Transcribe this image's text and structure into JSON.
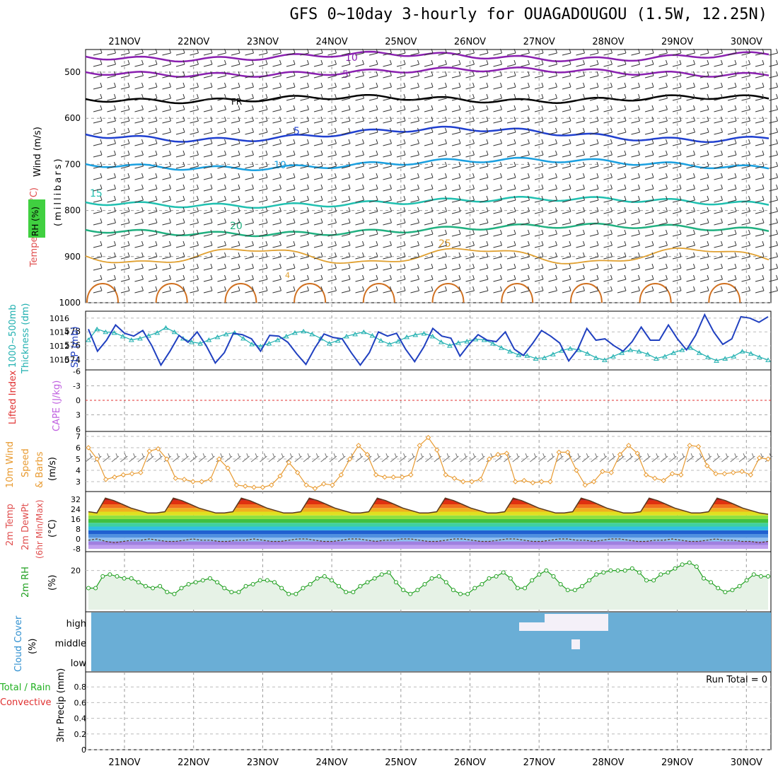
{
  "title": "GFS 0~10day 3-hourly for OUAGADOUGOU (1.5W, 12.25N)",
  "days": [
    "21NOV",
    "22NOV",
    "23NOV",
    "24NOV",
    "25NOV",
    "26NOV",
    "27NOV",
    "28NOV",
    "29NOV",
    "30NOV"
  ],
  "colors": {
    "wind_label": "#000000",
    "temp_label": "#e05050",
    "rh_label": "#20c020",
    "thickness": "#20b0b0",
    "slp": "#2040c0",
    "cape": "#c060e0",
    "lifted": "#e03030",
    "wind10": "#e89a30",
    "barb": "#707070",
    "rh2m": "#20a020",
    "cloud_bg": "#6aaed6",
    "cloud_gap": "#f4f0f8",
    "precip_total": "#20b020",
    "precip_conv": "#e03030"
  },
  "panels": {
    "upper": {
      "labels": [
        "Wind (m/s)",
        "Temperature (°C)",
        "RH (%)",
        "(millibars)"
      ],
      "yticks": [
        "500",
        "600",
        "700",
        "800",
        "900",
        "1000"
      ],
      "contour_labels": [
        "10",
        "5",
        "FR",
        "5",
        "10",
        "15",
        "20",
        "25",
        "4"
      ]
    },
    "thickness_slp": {
      "labels": [
        "1000~500mb",
        "Thickness (dm)",
        "SLP (mb)"
      ],
      "left_ticks": [
        "578",
        "576",
        "574"
      ],
      "right_ticks": [
        "1016",
        "1014",
        "1012",
        "1010"
      ]
    },
    "lifted_cape": {
      "labels": [
        "Lifted Index",
        "CAPE (J/kg)"
      ],
      "ticks": [
        "-6",
        "-3",
        "0",
        "3",
        "6"
      ]
    },
    "wind10": {
      "labels": [
        "10m Wind",
        "Speed",
        "& Barbs",
        "(m/s)"
      ],
      "ticks": [
        "7",
        "6",
        "5",
        "4",
        "3"
      ]
    },
    "temp2m": {
      "labels": [
        "2m Temp",
        "2m DewPt",
        "(6hr Min/Max)",
        "(°C)"
      ],
      "ticks": [
        "32",
        "24",
        "16",
        "8",
        "0",
        "-8"
      ]
    },
    "rh2m": {
      "labels": [
        "2m RH",
        "(%)"
      ],
      "ticks": [
        "20"
      ]
    },
    "cloud": {
      "labels": [
        "Cloud Cover",
        "(%)"
      ],
      "ticks": [
        "high",
        "middle",
        "low"
      ]
    },
    "precip": {
      "labels": [
        "Total / Rain",
        "Convective",
        "3hr Precip (mm)"
      ],
      "ticks": [
        "0.8",
        "0.6",
        "0.4",
        "0.2",
        "0"
      ],
      "run_total": "Run Total = 0"
    }
  },
  "chart_data": [
    {
      "type": "line",
      "name": "1000~500mb Thickness (dm)",
      "unit": "dm",
      "x": "3-hourly 20NOV12Z to 30NOV06Z",
      "ylim": [
        573,
        580
      ],
      "values": [
        576.8,
        578.3,
        577.9,
        577.8,
        577.3,
        576.8,
        577.0,
        577.4,
        577.8,
        578.5,
        577.9,
        577.0,
        576.5,
        576.3,
        576.8,
        577.2,
        577.6,
        577.8,
        577.0,
        576.2,
        575.9,
        576.3,
        576.8,
        577.3,
        577.8,
        578.0,
        577.6,
        577.0,
        576.3,
        576.7,
        577.3,
        577.6,
        577.9,
        577.4,
        576.7,
        576.2,
        576.6,
        577.2,
        577.5,
        577.7,
        577.3,
        576.5,
        576.0,
        576.4,
        576.6,
        576.9,
        576.8,
        576.3,
        575.7,
        575.2,
        574.7,
        574.6,
        574.2,
        574.3,
        574.8,
        575.3,
        575.6,
        575.4,
        574.9,
        574.3,
        574.0,
        574.5,
        575.0,
        575.4,
        575.2,
        574.8,
        574.2,
        574.5,
        575.0,
        575.4,
        575.7,
        575.0,
        574.4,
        573.9,
        574.2,
        574.5,
        575.2,
        574.9,
        574.4,
        574.0
      ]
    },
    {
      "type": "line",
      "name": "SLP (mb)",
      "unit": "mb",
      "ylim": [
        1008.5,
        1017
      ],
      "values": [
        1014.4,
        1011.2,
        1012.8,
        1015.0,
        1013.8,
        1013.4,
        1014.2,
        1012.0,
        1009.2,
        1011.2,
        1013.5,
        1012.5,
        1014.0,
        1012.0,
        1009.5,
        1011.0,
        1013.8,
        1013.6,
        1013.0,
        1011.2,
        1013.5,
        1013.4,
        1012.5,
        1010.8,
        1009.3,
        1011.7,
        1013.7,
        1013.2,
        1013.0,
        1011.0,
        1009.2,
        1011.0,
        1014.0,
        1013.4,
        1013.8,
        1011.5,
        1009.7,
        1011.8,
        1014.5,
        1013.4,
        1013.1,
        1010.5,
        1012.2,
        1013.6,
        1012.8,
        1012.6,
        1014.0,
        1011.5,
        1010.6,
        1012.3,
        1014.2,
        1013.4,
        1012.4,
        1009.8,
        1011.5,
        1014.5,
        1012.8,
        1013.0,
        1012.0,
        1011.2,
        1012.6,
        1014.7,
        1012.8,
        1012.8,
        1015.0,
        1013.0,
        1011.4,
        1013.5,
        1016.5,
        1014.0,
        1012.2,
        1013.0,
        1016.2,
        1016.0,
        1015.4,
        1016.2
      ]
    },
    {
      "type": "line",
      "name": "Lifted Index",
      "unit": "",
      "ylim": [
        -6,
        6
      ],
      "values": []
    },
    {
      "type": "line",
      "name": "CAPE (J/kg)",
      "unit": "J/kg",
      "values": []
    },
    {
      "type": "line",
      "name": "10m Wind Speed",
      "unit": "m/s",
      "ylim": [
        2,
        7
      ],
      "values": [
        6.0,
        5.0,
        3.2,
        3.4,
        3.6,
        3.7,
        3.8,
        5.7,
        5.9,
        5.0,
        3.3,
        3.2,
        3.0,
        3.0,
        3.2,
        5.0,
        4.2,
        2.7,
        2.6,
        2.5,
        2.5,
        2.7,
        3.5,
        4.7,
        3.8,
        2.7,
        2.4,
        2.8,
        2.7,
        3.6,
        5.0,
        6.2,
        5.4,
        3.6,
        3.4,
        3.4,
        3.4,
        3.6,
        6.2,
        6.9,
        5.8,
        3.6,
        3.3,
        3.0,
        3.0,
        3.2,
        5.0,
        5.4,
        5.5,
        3.0,
        3.1,
        2.9,
        3.0,
        3.0,
        5.6,
        5.6,
        4.0,
        2.7,
        3.0,
        3.9,
        3.8,
        5.4,
        6.2,
        5.5,
        3.6,
        3.3,
        3.1,
        3.7,
        3.6,
        6.2,
        6.1,
        4.4,
        3.7,
        3.7,
        3.8,
        3.9,
        3.6,
        5.1,
        5.0
      ]
    },
    {
      "type": "area",
      "name": "2m Temp",
      "unit": "°C",
      "ylim": [
        -8,
        36
      ],
      "values": [
        22,
        21,
        33,
        31,
        28,
        25,
        23,
        21,
        21,
        22,
        33,
        31,
        28,
        25,
        23,
        21,
        21,
        22,
        33,
        31,
        28,
        25,
        23,
        21,
        21,
        22,
        33,
        31,
        28,
        25,
        23,
        21,
        21,
        22,
        33,
        31,
        28,
        25,
        23,
        21,
        21,
        22,
        33,
        31,
        28,
        25,
        23,
        21,
        21,
        22,
        33,
        31,
        28,
        25,
        23,
        21,
        21,
        22,
        33,
        31,
        28,
        25,
        23,
        21,
        21,
        22,
        33,
        31,
        28,
        25,
        23,
        21,
        21,
        22,
        33,
        31,
        28,
        25,
        23,
        21,
        20
      ]
    },
    {
      "type": "line",
      "name": "2m DewPt",
      "unit": "°C",
      "ylim": [
        -8,
        36
      ],
      "values": [
        -1,
        0,
        -2,
        -3,
        -2,
        -1,
        -1,
        0,
        -1,
        -2,
        -2,
        -1,
        0,
        -1,
        -1,
        -2,
        -2,
        -1,
        -1,
        0,
        -1,
        -2,
        -2,
        -1,
        0,
        0,
        -1,
        -2,
        -2,
        -1,
        0,
        0,
        -1,
        -2,
        -1,
        -1,
        0,
        0,
        -1,
        -2,
        -2,
        -1,
        0,
        0,
        -1,
        -2,
        -2,
        -1,
        0,
        0,
        -1,
        -2,
        -2,
        -1,
        0,
        0,
        -1,
        -1,
        -2,
        -1,
        0,
        0,
        -1,
        -2,
        -2,
        -1,
        -1,
        0,
        -1,
        -2,
        -2,
        -1,
        0,
        -1,
        -1,
        -2,
        -2,
        -3,
        -2
      ]
    },
    {
      "type": "area",
      "name": "2m RH",
      "unit": "%",
      "ylim": [
        0,
        26
      ],
      "values": [
        11,
        11,
        17,
        18,
        17,
        16,
        16,
        14,
        12,
        11,
        12,
        9,
        8,
        11,
        13,
        14,
        15,
        16,
        14,
        11,
        9,
        9,
        12,
        13,
        15,
        15,
        14,
        11,
        8,
        8,
        11,
        13,
        16,
        17,
        15,
        12,
        9,
        9,
        12,
        14,
        16,
        18,
        19,
        14,
        10,
        8,
        10,
        13,
        16,
        17,
        14,
        10,
        8,
        8,
        11,
        13,
        16,
        17,
        19,
        16,
        11,
        11,
        15,
        18,
        20,
        17,
        13,
        10,
        10,
        12,
        15,
        18,
        19,
        20,
        20,
        20,
        21,
        19,
        15,
        15,
        18,
        19,
        21,
        23,
        24,
        22,
        16,
        14,
        11,
        9,
        10,
        12,
        15,
        18,
        17,
        17
      ]
    },
    {
      "type": "bar",
      "name": "3hr Precip (mm)",
      "unit": "mm",
      "ylim": [
        0,
        1
      ],
      "values": []
    }
  ]
}
